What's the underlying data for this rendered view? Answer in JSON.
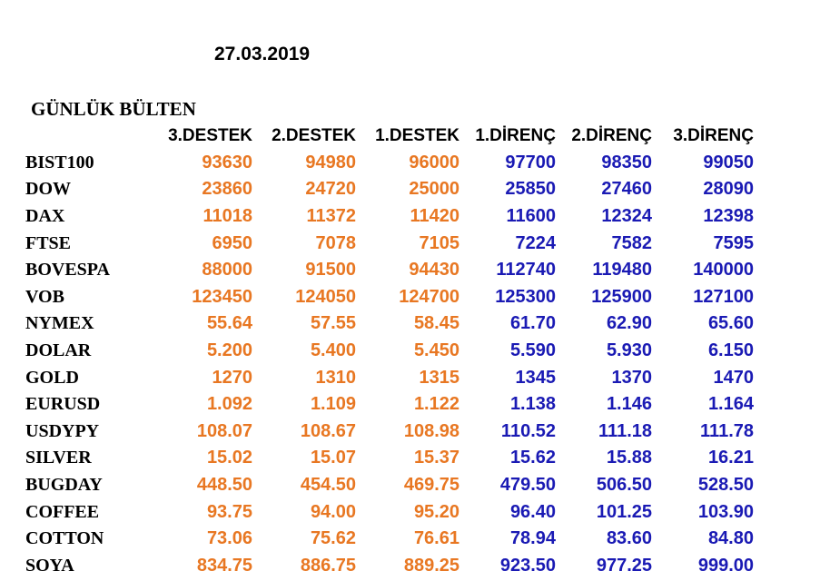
{
  "date": "27.03.2019",
  "title": "GÜNLÜK BÜLTEN",
  "colors": {
    "support": "#e87722",
    "resistance": "#1a1ab4",
    "text": "#000000"
  },
  "headers": [
    "3.DESTEK",
    "2.DESTEK",
    "1.DESTEK",
    "1.DİRENÇ",
    "2.DİRENÇ",
    "3.DİRENÇ"
  ],
  "rows": [
    {
      "name": "BIST100",
      "values": [
        "93630",
        "94980",
        "96000",
        "97700",
        "98350",
        "99050"
      ]
    },
    {
      "name": "DOW",
      "values": [
        "23860",
        "24720",
        "25000",
        "25850",
        "27460",
        "28090"
      ]
    },
    {
      "name": "DAX",
      "values": [
        "11018",
        "11372",
        "11420",
        "11600",
        "12324",
        "12398"
      ]
    },
    {
      "name": "FTSE",
      "values": [
        "6950",
        "7078",
        "7105",
        "7224",
        "7582",
        "7595"
      ]
    },
    {
      "name": "BOVESPA",
      "values": [
        "88000",
        "91500",
        "94430",
        "112740",
        "119480",
        "140000"
      ]
    },
    {
      "name": "VOB",
      "values": [
        "123450",
        "124050",
        "124700",
        "125300",
        "125900",
        "127100"
      ]
    },
    {
      "name": "NYMEX",
      "values": [
        "55.64",
        "57.55",
        "58.45",
        "61.70",
        "62.90",
        "65.60"
      ]
    },
    {
      "name": "DOLAR",
      "values": [
        "5.200",
        "5.400",
        "5.450",
        "5.590",
        "5.930",
        "6.150"
      ]
    },
    {
      "name": "GOLD",
      "values": [
        "1270",
        "1310",
        "1315",
        "1345",
        "1370",
        "1470"
      ]
    },
    {
      "name": "EURUSD",
      "values": [
        "1.092",
        "1.109",
        "1.122",
        "1.138",
        "1.146",
        "1.164"
      ]
    },
    {
      "name": "USDYPY",
      "values": [
        "108.07",
        "108.67",
        "108.98",
        "110.52",
        "111.18",
        "111.78"
      ]
    },
    {
      "name": "SILVER",
      "values": [
        "15.02",
        "15.07",
        "15.37",
        "15.62",
        "15.88",
        "16.21"
      ]
    },
    {
      "name": "BUGDAY",
      "values": [
        "448.50",
        "454.50",
        "469.75",
        "479.50",
        "506.50",
        "528.50"
      ]
    },
    {
      "name": "COFFEE",
      "values": [
        "93.75",
        "94.00",
        "95.20",
        "96.40",
        "101.25",
        "103.90"
      ]
    },
    {
      "name": "COTTON",
      "values": [
        "73.06",
        "75.62",
        "76.61",
        "78.94",
        "83.60",
        "84.80"
      ]
    },
    {
      "name": "SOYA",
      "values": [
        "834.75",
        "886.75",
        "889.25",
        "923.50",
        "977.25",
        "999.00"
      ]
    }
  ]
}
